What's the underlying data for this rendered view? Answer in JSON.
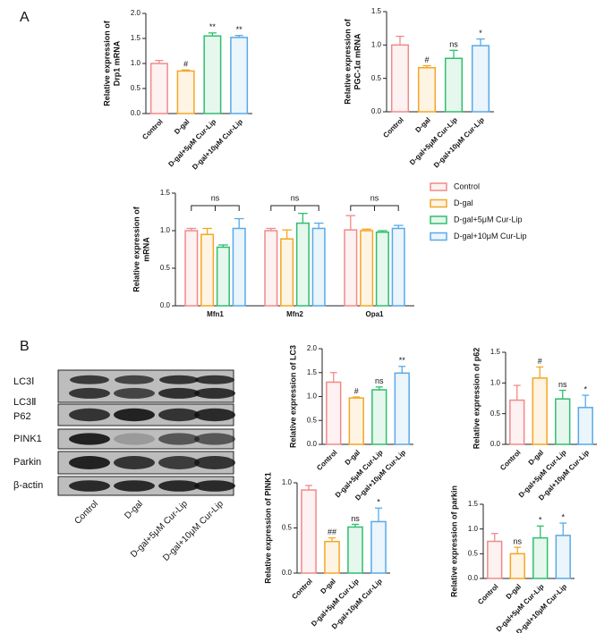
{
  "panels": [
    "A",
    "B"
  ],
  "blot": {
    "proteins": [
      "LC3Ⅰ",
      "LC3Ⅱ",
      "P62",
      "PINK1",
      "Parkin",
      "β-actin"
    ],
    "lanes": [
      "Control",
      "D-gal",
      "D-gal+5μM Cur-Lip",
      "D-gal+10μM Cur-Lip"
    ]
  },
  "chart_data": [
    {
      "type": "bar",
      "ylabel": [
        "Relative expression of",
        "Drp1 mRNA"
      ],
      "categories": [
        "Control",
        "D-gal",
        "D-gal+5μM Cur-Lip",
        "D-gal+10μM Cur-Lip"
      ],
      "values": [
        1.0,
        0.85,
        1.55,
        1.52
      ],
      "errors": [
        0.06,
        0.02,
        0.06,
        0.04
      ],
      "annotations": [
        null,
        "#",
        "**",
        "**"
      ],
      "colors": [
        "#f08a8a",
        "#f5a623",
        "#2ebf6e",
        "#5aa9e6"
      ],
      "ylim": [
        0,
        2
      ],
      "yticks": [
        {
          "value": 0,
          "label": "0.0"
        },
        0.5,
        {
          "value": 1,
          "label": "1.0"
        },
        1.5,
        {
          "value": 2,
          "label": "2.0"
        }
      ]
    },
    {
      "type": "bar",
      "ylabel": [
        "Relative expression of",
        "PGC-1α mRNA"
      ],
      "categories": [
        "Control",
        "D-gal",
        "D-gal+5μM Cur-Lip",
        "D-gal+10μM Cur-Lip"
      ],
      "values": [
        1.0,
        0.66,
        0.8,
        0.99
      ],
      "errors": [
        0.13,
        0.03,
        0.12,
        0.1
      ],
      "annotations": [
        null,
        "#",
        "ns",
        "*"
      ],
      "colors": [
        "#f08a8a",
        "#f5a623",
        "#2ebf6e",
        "#5aa9e6"
      ],
      "ylim": [
        0,
        1.5
      ],
      "yticks": [
        {
          "value": 0,
          "label": "0.0"
        },
        0.5,
        {
          "value": 1,
          "label": "1.0"
        },
        1.5
      ]
    },
    {
      "type": "grouped_bar",
      "ylabel": [
        "Relative expression of",
        "mRNA"
      ],
      "categories": [
        "Mfn1",
        "Mfn2",
        "Opa1"
      ],
      "annotations": [
        "ns",
        "ns",
        "ns"
      ],
      "series": [
        {
          "name": "Control",
          "color": "#f08a8a",
          "values": [
            1.0,
            1.0,
            1.01
          ],
          "errors": [
            0.03,
            0.03,
            0.19
          ]
        },
        {
          "name": "D-gal",
          "color": "#f5a623",
          "values": [
            0.95,
            0.89,
            1.0
          ],
          "errors": [
            0.08,
            0.12,
            0.02
          ]
        },
        {
          "name": "D-gal+5μM Cur-Lip",
          "color": "#2ebf6e",
          "values": [
            0.78,
            1.1,
            0.98
          ],
          "errors": [
            0.03,
            0.13,
            0.02
          ]
        },
        {
          "name": "D-gal+10μM Cur-Lip",
          "color": "#5aa9e6",
          "values": [
            1.03,
            1.03,
            1.03
          ],
          "errors": [
            0.13,
            0.07,
            0.04
          ]
        }
      ],
      "ylim": [
        0,
        1.5
      ],
      "yticks": [
        {
          "value": 0,
          "label": "0.0"
        },
        0.5,
        {
          "value": 1,
          "label": "1.0"
        },
        1.5
      ]
    },
    {
      "type": "bar",
      "ylabel": [
        "Relative expression of LC3"
      ],
      "categories": [
        "Control",
        "D-gal",
        "D-gal+5μM Cur-Lip",
        "D-gal+10μM Cur-Lip"
      ],
      "values": [
        1.3,
        0.97,
        1.14,
        1.49
      ],
      "errors": [
        0.2,
        0.02,
        0.06,
        0.14
      ],
      "annotations": [
        null,
        "#",
        "ns",
        "**"
      ],
      "colors": [
        "#f08a8a",
        "#f5a623",
        "#2ebf6e",
        "#5aa9e6"
      ],
      "ylim": [
        0,
        2
      ],
      "yticks": [
        {
          "value": 0,
          "label": "0.0"
        },
        0.5,
        {
          "value": 1,
          "label": "1.0"
        },
        1.5,
        {
          "value": 2,
          "label": "2.0"
        }
      ]
    },
    {
      "type": "bar",
      "ylabel": [
        "Relative expression of p62"
      ],
      "categories": [
        "Control",
        "D-gal",
        "D-gal+5μM Cur-Lip",
        "D-gal+10μM Cur-Lip"
      ],
      "values": [
        0.72,
        1.08,
        0.74,
        0.6
      ],
      "errors": [
        0.24,
        0.18,
        0.14,
        0.2
      ],
      "annotations": [
        null,
        "#",
        "ns",
        "*"
      ],
      "colors": [
        "#f08a8a",
        "#f5a623",
        "#2ebf6e",
        "#5aa9e6"
      ],
      "ylim": [
        0,
        1.5
      ],
      "yticks": [
        {
          "value": 0,
          "label": "0.0"
        },
        0.5,
        {
          "value": 1,
          "label": "1.0"
        },
        1.5
      ]
    },
    {
      "type": "bar",
      "ylabel": [
        "Relative expression of PINK1"
      ],
      "categories": [
        "Control",
        "D-gal",
        "D-gal+5μM Cur-Lip",
        "D-gal+10μM Cur-Lip"
      ],
      "values": [
        0.92,
        0.35,
        0.51,
        0.57
      ],
      "errors": [
        0.05,
        0.04,
        0.03,
        0.15
      ],
      "annotations": [
        null,
        "##",
        "ns",
        "*"
      ],
      "colors": [
        "#f08a8a",
        "#f5a623",
        "#2ebf6e",
        "#5aa9e6"
      ],
      "ylim": [
        0,
        1
      ],
      "yticks": [
        {
          "value": 0,
          "label": "0.0"
        },
        0.5,
        {
          "value": 1,
          "label": "1.0"
        }
      ]
    },
    {
      "type": "bar",
      "ylabel": [
        "Relative expression of parkin"
      ],
      "categories": [
        "Control",
        "D-gal",
        "D-gal+5μM Cur-Lip",
        "D-gal+10μM Cur-Lip"
      ],
      "values": [
        0.75,
        0.5,
        0.82,
        0.87
      ],
      "errors": [
        0.16,
        0.13,
        0.24,
        0.25
      ],
      "annotations": [
        null,
        "ns",
        "*",
        "*"
      ],
      "colors": [
        "#f08a8a",
        "#f5a623",
        "#2ebf6e",
        "#5aa9e6"
      ],
      "ylim": [
        0,
        1.5
      ],
      "yticks": [
        {
          "value": 0,
          "label": "0.0"
        },
        0.5,
        {
          "value": 1,
          "label": "1.0"
        },
        1.5
      ]
    }
  ]
}
